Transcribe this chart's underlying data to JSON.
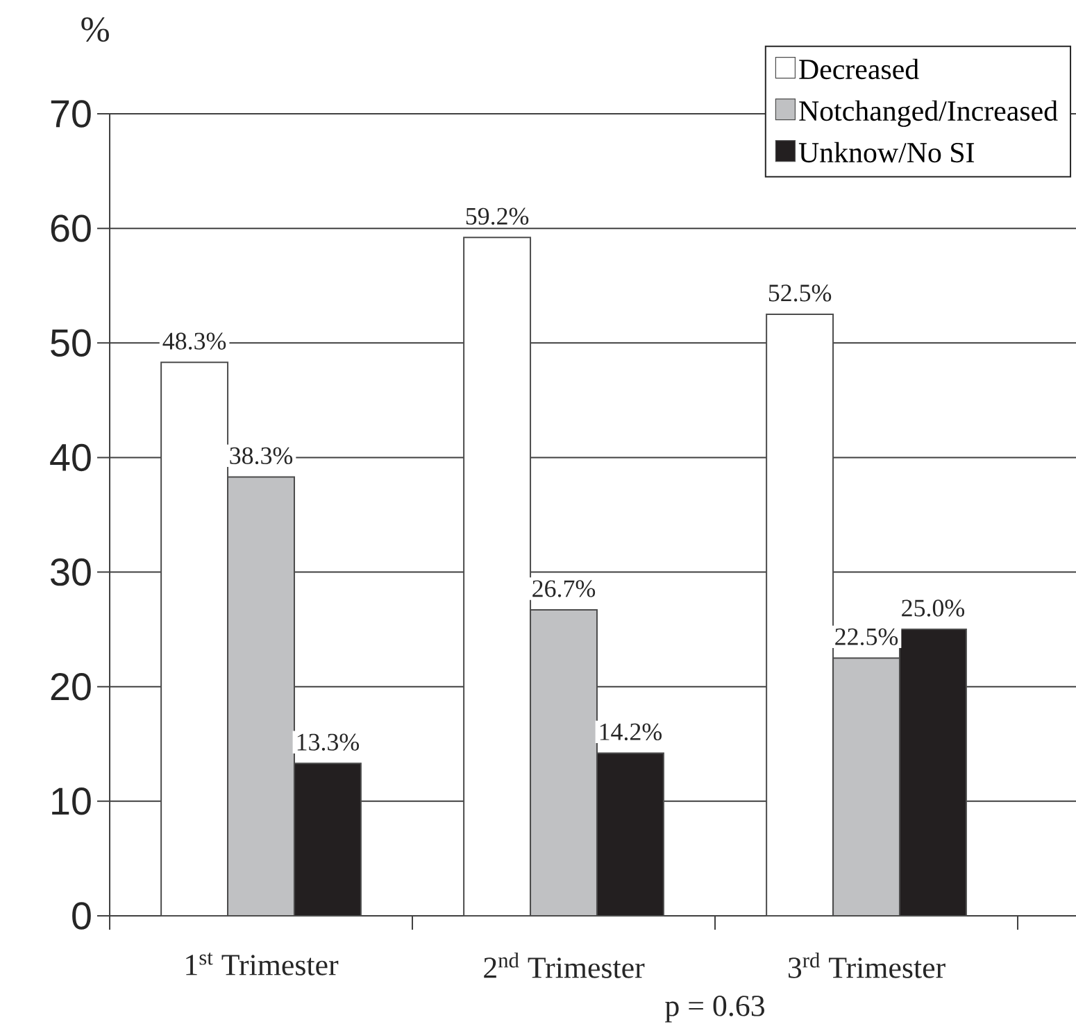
{
  "chart_data": {
    "type": "bar",
    "ylabel": "%",
    "categories": [
      "1$^{st}$ Trimester",
      "2$^{nd}$ Trimester",
      "3$^{rd}$ Trimester"
    ],
    "series": [
      {
        "name": "Decreased",
        "color": "#ffffff",
        "values": [
          48.3,
          59.2,
          52.5
        ],
        "value_labels": [
          "48.3%",
          "59.2%",
          "52.5%"
        ]
      },
      {
        "name": "Notchanged/Increased",
        "color": "#c0c1c3",
        "values": [
          38.3,
          26.7,
          22.5
        ],
        "value_labels": [
          "38.3%",
          "26.7%",
          "22.5%"
        ]
      },
      {
        "name": "Unknow/No SI",
        "color": "#231f20",
        "values": [
          13.3,
          14.2,
          25.0
        ],
        "value_labels": [
          "13.3%",
          "14.2%",
          "25.0%"
        ]
      }
    ],
    "ylim": [
      0,
      70
    ],
    "yticks": [
      0,
      10,
      20,
      30,
      40,
      50,
      60,
      70
    ],
    "grid": "y",
    "legend": "top right",
    "annotations": [
      "p = 0.63"
    ]
  }
}
